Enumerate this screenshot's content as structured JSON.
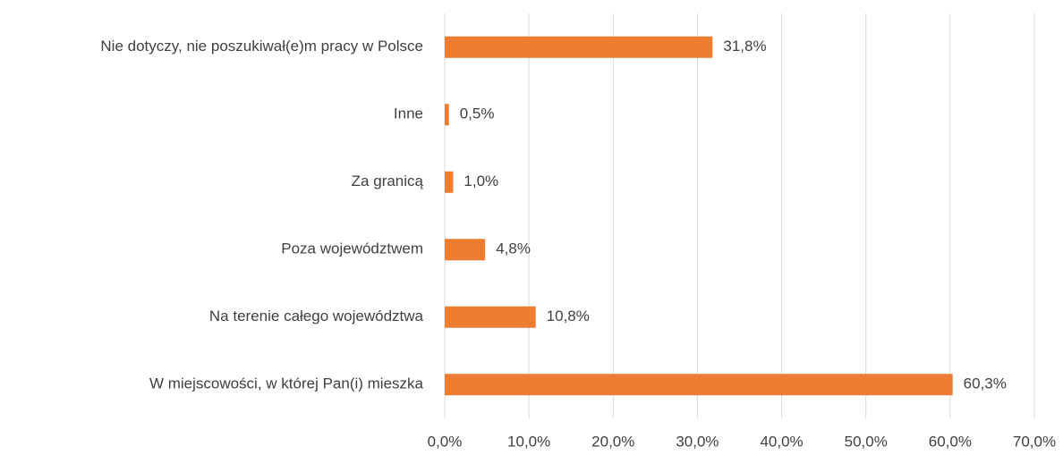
{
  "chart_data": {
    "type": "bar",
    "orientation": "horizontal",
    "categories": [
      "Nie dotyczy, nie poszukiwał(e)m pracy w Polsce",
      "Inne",
      "Za granicą",
      "Poza województwem",
      "Na terenie całego województwa",
      "W miejscowości, w której Pan(i) mieszka"
    ],
    "values": [
      31.8,
      0.5,
      1.0,
      4.8,
      10.8,
      60.3
    ],
    "value_labels": [
      "31,8%",
      "0,5%",
      "1,0%",
      "4,8%",
      "10,8%",
      "60,3%"
    ],
    "color": "#ed7d31",
    "xlim": [
      0,
      70
    ],
    "xticks": [
      {
        "value": 0,
        "label": "0,0%"
      },
      {
        "value": 10,
        "label": "10,0%"
      },
      {
        "value": 20,
        "label": "20,0%"
      },
      {
        "value": 30,
        "label": "30,0%"
      },
      {
        "value": 40,
        "label": "40,0%"
      },
      {
        "value": 50,
        "label": "50,0%"
      },
      {
        "value": 60,
        "label": "60,0%"
      },
      {
        "value": 70,
        "label": "70,0%"
      }
    ],
    "grid": true
  }
}
